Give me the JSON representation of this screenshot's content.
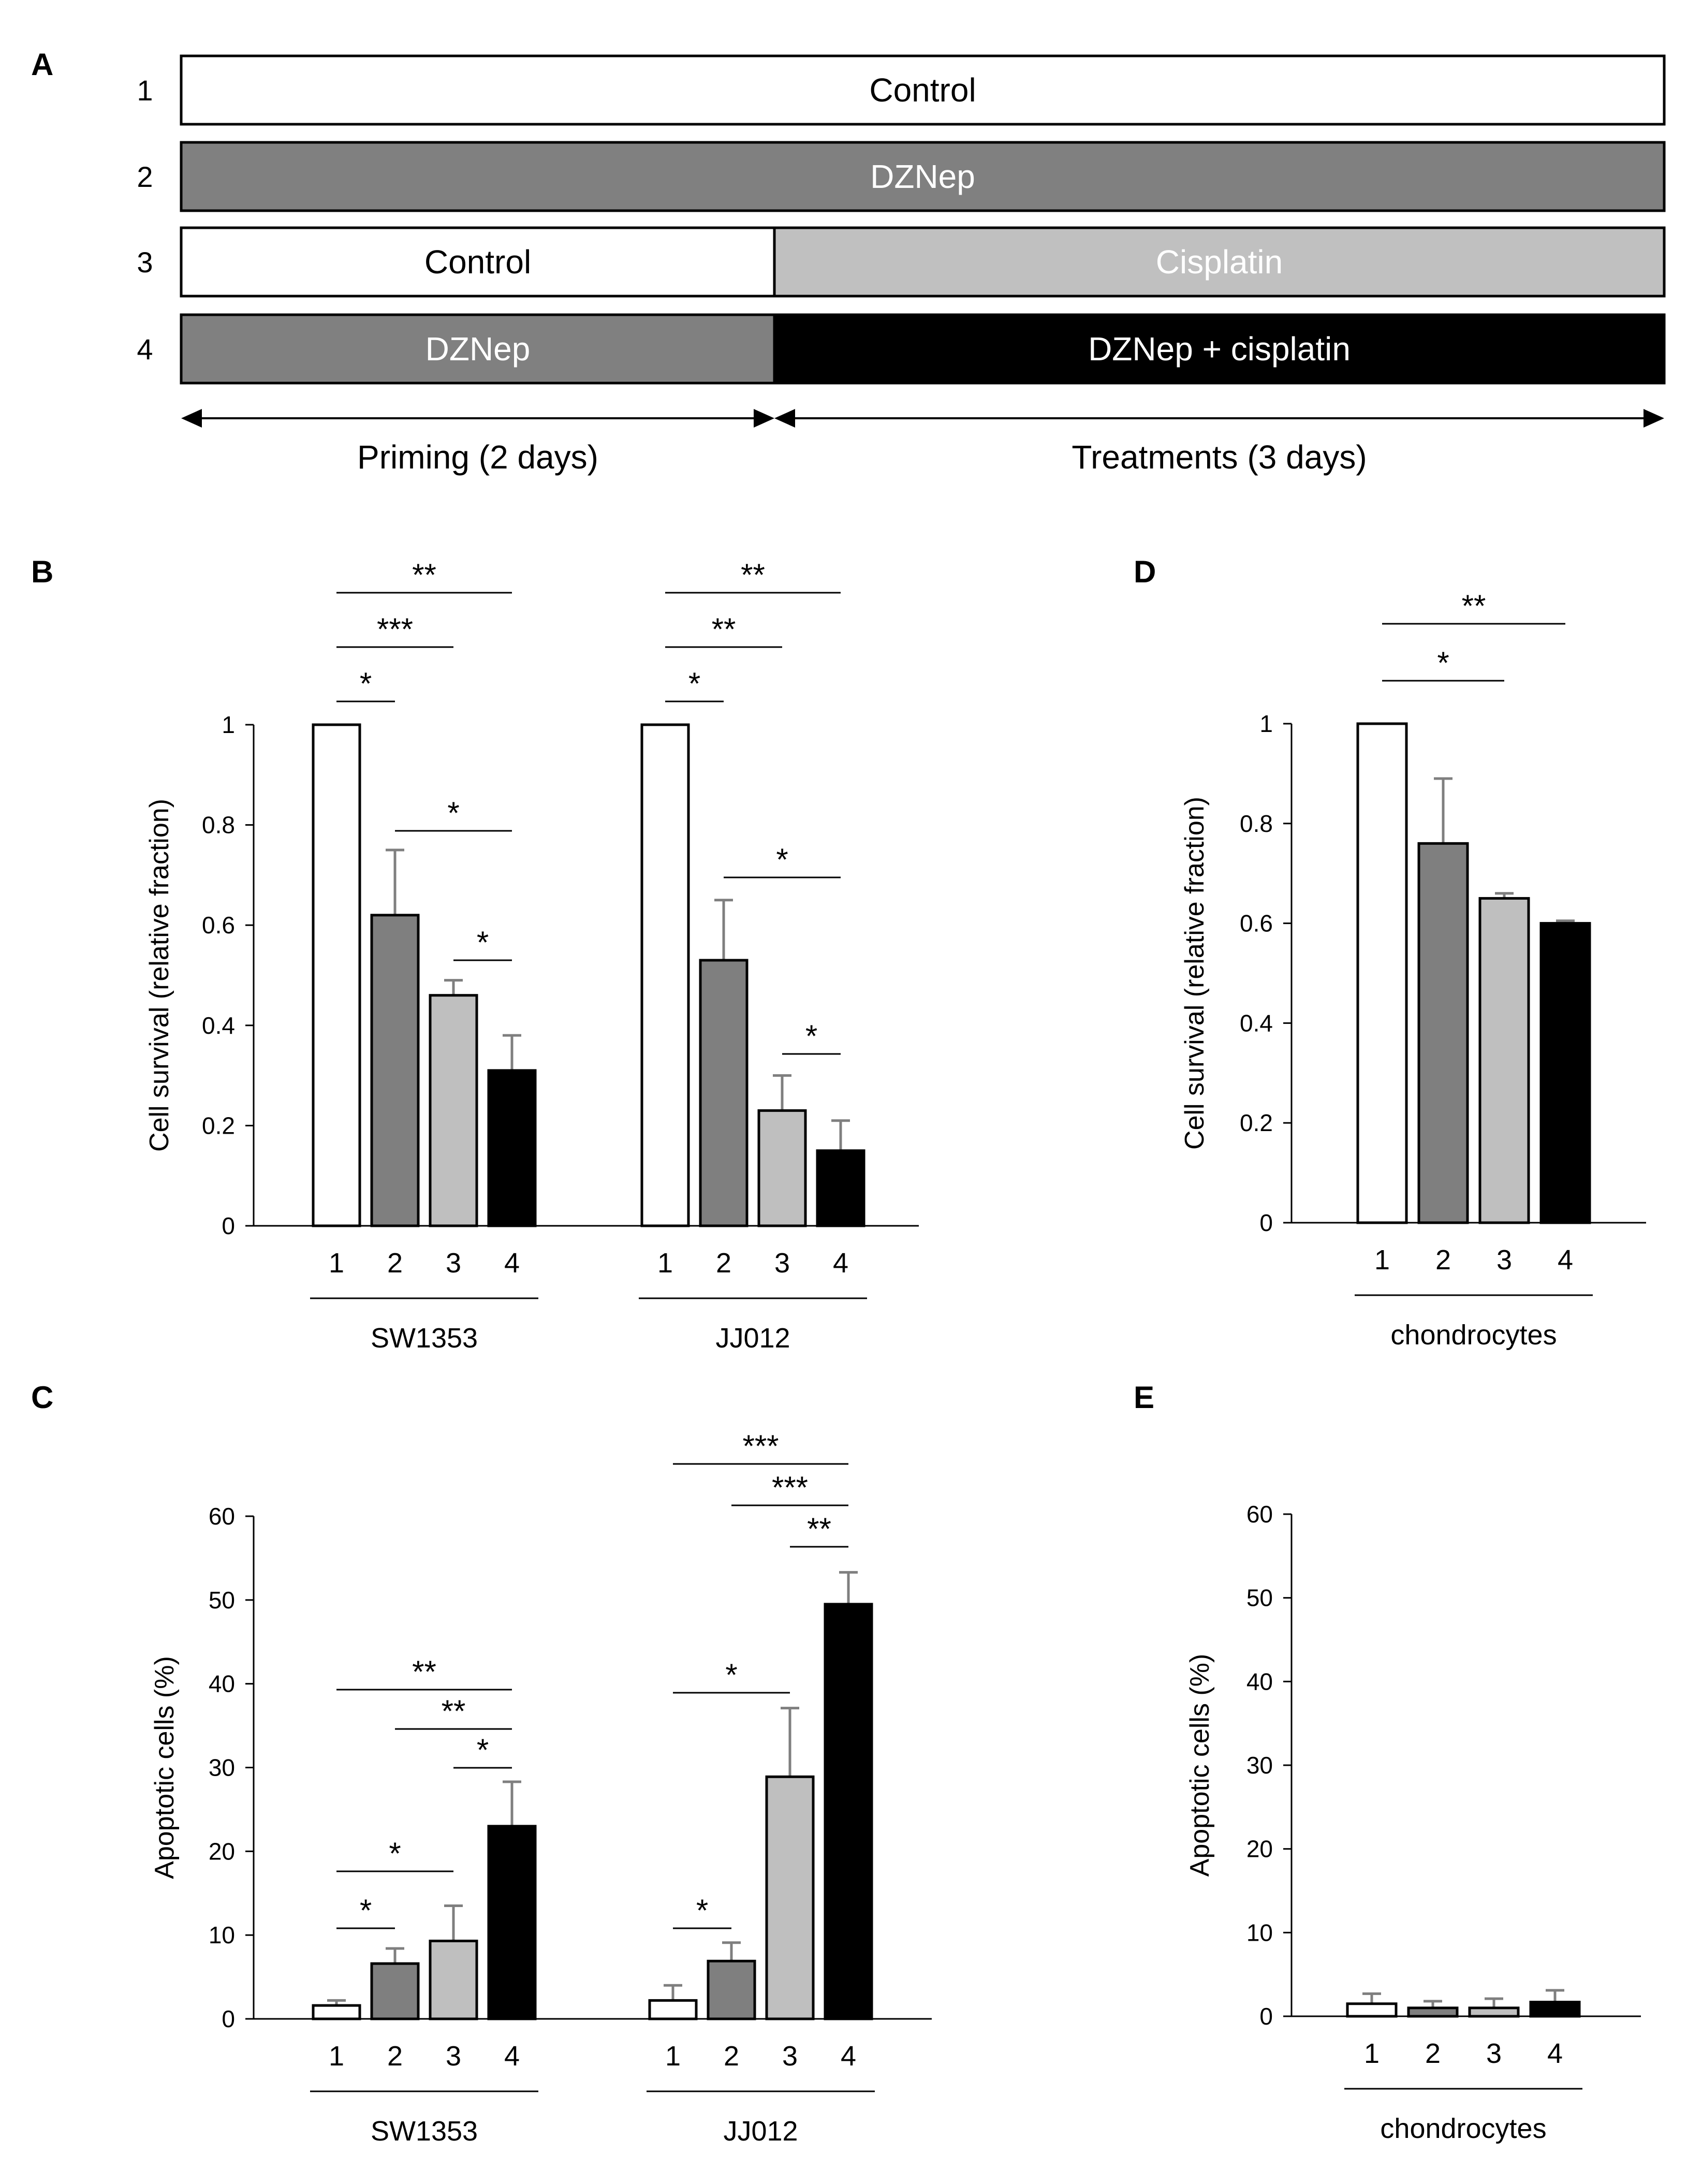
{
  "panels": {
    "A": "A",
    "B": "B",
    "C": "C",
    "D": "D",
    "E": "E"
  },
  "protocol": {
    "rows": [
      {
        "num": "1",
        "segments": [
          {
            "label": "Control",
            "fill": "#ffffff",
            "text_color": "#000000"
          }
        ]
      },
      {
        "num": "2",
        "segments": [
          {
            "label": "DZNep",
            "fill": "#808080",
            "text_color": "#ffffff"
          }
        ]
      },
      {
        "num": "3",
        "segments": [
          {
            "label": "Control",
            "fill": "#ffffff",
            "text_color": "#000000"
          },
          {
            "label": "Cisplatin",
            "fill": "#c0c0c0",
            "text_color": "#ffffff"
          }
        ]
      },
      {
        "num": "4",
        "segments": [
          {
            "label": "DZNep",
            "fill": "#808080",
            "text_color": "#ffffff"
          },
          {
            "label": "DZNep + cisplatin",
            "fill": "#000000",
            "text_color": "#ffffff"
          }
        ]
      }
    ],
    "phases": [
      "Priming (2 days)",
      "Treatments (3 days)"
    ],
    "durations_days": [
      2,
      3
    ]
  },
  "chart_data": [
    {
      "panel": "B",
      "type": "bar",
      "ylabel": "Cell survival (relative fraction)",
      "ylim": [
        0,
        1
      ],
      "yticks": [
        "0",
        "0.2",
        "0.4",
        "0.6",
        "0.8",
        "1"
      ],
      "groups": [
        {
          "name": "SW1353",
          "categories": [
            "1",
            "2",
            "3",
            "4"
          ],
          "values": [
            1.0,
            0.62,
            0.46,
            0.31
          ],
          "errors": [
            0,
            0.13,
            0.03,
            0.07
          ]
        },
        {
          "name": "JJ012",
          "categories": [
            "1",
            "2",
            "3",
            "4"
          ],
          "values": [
            1.0,
            0.53,
            0.23,
            0.15
          ],
          "errors": [
            0,
            0.12,
            0.07,
            0.06
          ]
        }
      ],
      "colors": [
        "#ffffff",
        "#7f7f7f",
        "#bfbfbf",
        "#000000"
      ],
      "significance": [
        {
          "group": 0,
          "from": 0,
          "to": 3,
          "label": "**"
        },
        {
          "group": 0,
          "from": 0,
          "to": 2,
          "label": "***"
        },
        {
          "group": 0,
          "from": 0,
          "to": 1,
          "label": "*"
        },
        {
          "group": 0,
          "from": 1,
          "to": 3,
          "label": "*"
        },
        {
          "group": 0,
          "from": 2,
          "to": 3,
          "label": "*"
        },
        {
          "group": 1,
          "from": 0,
          "to": 3,
          "label": "**"
        },
        {
          "group": 1,
          "from": 0,
          "to": 2,
          "label": "**"
        },
        {
          "group": 1,
          "from": 0,
          "to": 1,
          "label": "*"
        },
        {
          "group": 1,
          "from": 1,
          "to": 3,
          "label": "*"
        },
        {
          "group": 1,
          "from": 2,
          "to": 3,
          "label": "*"
        }
      ]
    },
    {
      "panel": "C",
      "type": "bar",
      "ylabel": "Apoptotic cells (%)",
      "ylim": [
        0,
        60
      ],
      "yticks": [
        "0",
        "10",
        "20",
        "30",
        "40",
        "50",
        "60"
      ],
      "groups": [
        {
          "name": "SW1353",
          "categories": [
            "1",
            "2",
            "3",
            "4"
          ],
          "values": [
            1.6,
            6.6,
            9.3,
            23
          ],
          "errors": [
            0.6,
            1.8,
            4.2,
            5.3
          ]
        },
        {
          "name": "JJ012",
          "categories": [
            "1",
            "2",
            "3",
            "4"
          ],
          "values": [
            2.2,
            6.9,
            28.9,
            49.5
          ],
          "errors": [
            1.8,
            2.2,
            8.2,
            3.8
          ]
        }
      ],
      "colors": [
        "#ffffff",
        "#7f7f7f",
        "#bfbfbf",
        "#000000"
      ],
      "significance": [
        {
          "group": 0,
          "from": 0,
          "to": 3,
          "label": "**"
        },
        {
          "group": 0,
          "from": 1,
          "to": 3,
          "label": "**"
        },
        {
          "group": 0,
          "from": 2,
          "to": 3,
          "label": "*"
        },
        {
          "group": 0,
          "from": 0,
          "to": 2,
          "label": "*"
        },
        {
          "group": 0,
          "from": 0,
          "to": 1,
          "label": "*"
        },
        {
          "group": 1,
          "from": 0,
          "to": 3,
          "label": "***"
        },
        {
          "group": 1,
          "from": 1,
          "to": 3,
          "label": "***"
        },
        {
          "group": 1,
          "from": 2,
          "to": 3,
          "label": "**"
        },
        {
          "group": 1,
          "from": 0,
          "to": 2,
          "label": "*"
        },
        {
          "group": 1,
          "from": 0,
          "to": 1,
          "label": "*"
        }
      ]
    },
    {
      "panel": "D",
      "type": "bar",
      "ylabel": "Cell survival (relative fraction)",
      "ylim": [
        0,
        1
      ],
      "yticks": [
        "0",
        "0.2",
        "0.4",
        "0.6",
        "0.8",
        "1"
      ],
      "groups": [
        {
          "name": "chondrocytes",
          "categories": [
            "1",
            "2",
            "3",
            "4"
          ],
          "values": [
            1.0,
            0.76,
            0.65,
            0.6
          ],
          "errors": [
            0,
            0.13,
            0.01,
            0.005
          ]
        }
      ],
      "colors": [
        "#ffffff",
        "#7f7f7f",
        "#bfbfbf",
        "#000000"
      ],
      "significance": [
        {
          "group": 0,
          "from": 0,
          "to": 3,
          "label": "**"
        },
        {
          "group": 0,
          "from": 0,
          "to": 2,
          "label": "*"
        }
      ]
    },
    {
      "panel": "E",
      "type": "bar",
      "ylabel": "Apoptotic cells (%)",
      "ylim": [
        0,
        60
      ],
      "yticks": [
        "0",
        "10",
        "20",
        "30",
        "40",
        "50",
        "60"
      ],
      "groups": [
        {
          "name": "chondrocytes",
          "categories": [
            "1",
            "2",
            "3",
            "4"
          ],
          "values": [
            1.5,
            1.0,
            1.0,
            1.7
          ],
          "errors": [
            1.2,
            0.8,
            1.1,
            1.4
          ]
        }
      ],
      "colors": [
        "#ffffff",
        "#7f7f7f",
        "#bfbfbf",
        "#000000"
      ],
      "significance": []
    }
  ]
}
